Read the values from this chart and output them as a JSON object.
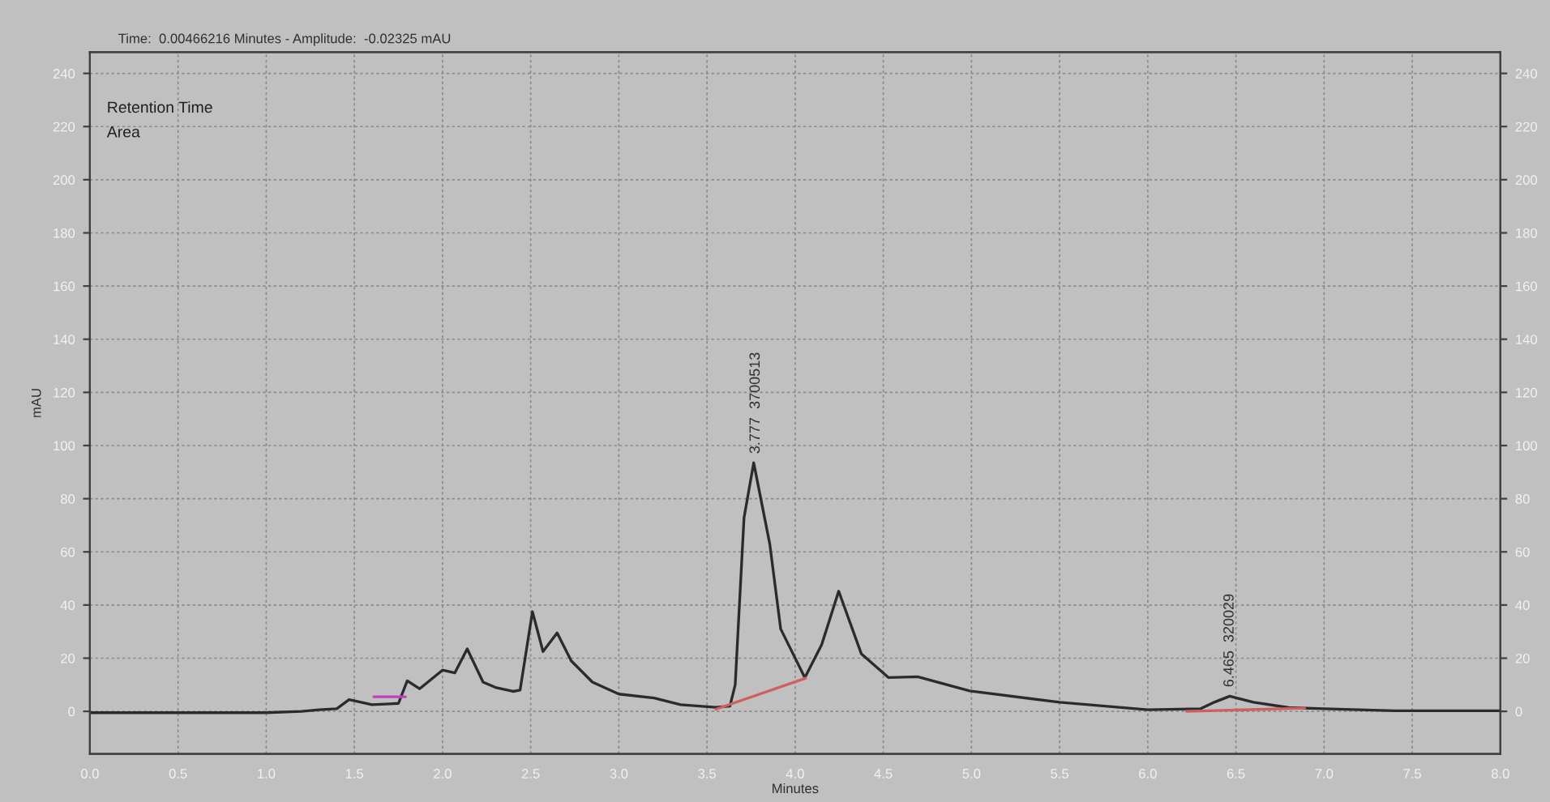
{
  "chart_data": {
    "type": "line",
    "title": "Time:  0.00466216 Minutes - Amplitude:  -0.02325 mAU",
    "xlabel": "Minutes",
    "ylabel": "mAU",
    "xlim": [
      0,
      8
    ],
    "xticks": [
      {
        "value": 0,
        "label": "0.0"
      },
      0.5,
      {
        "value": 1,
        "label": "1.0"
      },
      1.5,
      {
        "value": 2,
        "label": "2.0"
      },
      2.5,
      {
        "value": 3,
        "label": "3.0"
      },
      3.5,
      {
        "value": 4,
        "label": "4.0"
      },
      4.5,
      {
        "value": 5,
        "label": "5.0"
      },
      5.5,
      {
        "value": 6,
        "label": "6.0"
      },
      6.5,
      {
        "value": 7,
        "label": "7.0"
      },
      7.5,
      {
        "value": 8,
        "label": "8.0"
      }
    ],
    "ylim": [
      -16,
      248
    ],
    "yticks": [
      0,
      20,
      40,
      60,
      80,
      100,
      120,
      140,
      160,
      180,
      200,
      220,
      240
    ],
    "y2lim": [
      -16,
      248
    ],
    "y2ticks": [
      0,
      20,
      40,
      60,
      80,
      100,
      120,
      140,
      160,
      180,
      200,
      220,
      240
    ],
    "grid": true,
    "line_style": "solid",
    "marker": "none",
    "series": [
      {
        "color": "#2b2b2b",
        "x": [
          0,
          0.5,
          1.0,
          1.2,
          1.3,
          1.4,
          1.47,
          1.6,
          1.7,
          1.75,
          1.8,
          1.87,
          2.0,
          2.07,
          2.14,
          2.23,
          2.3,
          2.4,
          2.44,
          2.51,
          2.57,
          2.65,
          2.73,
          2.85,
          3.0,
          3.2,
          3.35,
          3.55,
          3.63,
          3.66,
          3.71,
          3.765,
          3.856,
          3.918,
          4.055,
          4.15,
          4.247,
          4.375,
          4.53,
          4.695,
          4.99,
          5.5,
          6.0,
          6.3,
          6.38,
          6.465,
          6.6,
          6.8,
          7.0,
          7.4,
          8.0
        ],
        "values": [
          -0.5,
          -0.5,
          -0.5,
          0,
          0.6,
          1,
          4.4,
          2.5,
          2.8,
          3,
          11.5,
          8.5,
          15.5,
          14.5,
          23.5,
          11,
          9,
          7.5,
          8,
          37.5,
          22.5,
          29.5,
          19,
          11,
          6.5,
          5,
          2.5,
          1.5,
          2,
          10,
          72.8,
          93.5,
          63,
          31,
          12.7,
          25,
          45.2,
          21.7,
          12.7,
          13,
          7.7,
          3.4,
          0.6,
          1,
          3.5,
          5.7,
          3.4,
          1.4,
          1,
          0.2,
          0.2
        ]
      },
      {
        "color": "#d06060",
        "x": [
          3.55,
          4.06
        ],
        "values": [
          0.8,
          12.5
        ]
      },
      {
        "color": "#d06060",
        "x": [
          6.22,
          6.89
        ],
        "values": [
          0,
          1.2
        ]
      },
      {
        "color": "#c040c0",
        "x": [
          1.61,
          1.79
        ],
        "values": [
          5.5,
          5.5
        ]
      }
    ],
    "annotations": [
      "Retention Time",
      "Area",
      {
        "text": "3.777  3700513",
        "x": 3.777,
        "y": 93.5
      },
      {
        "text": "6.465  320029",
        "x": 6.465,
        "y": 5.7
      }
    ]
  }
}
